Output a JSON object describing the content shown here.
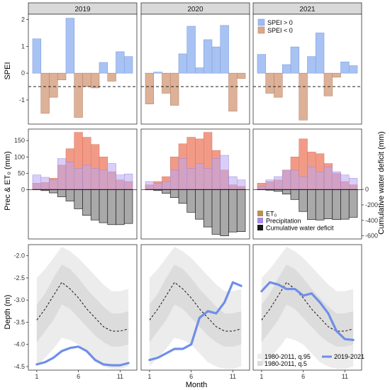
{
  "chart_data": {
    "type": "bar",
    "facets": [
      "2019",
      "2020",
      "2021"
    ],
    "months": [
      1,
      2,
      3,
      4,
      5,
      6,
      7,
      8,
      9,
      10,
      11,
      12
    ],
    "x_ticks": [
      1,
      6,
      11
    ],
    "xlabel": "Month",
    "colors": {
      "spei_pos": "#9ebcf2",
      "spei_neg": "#d9a98d",
      "et0": "#ef8a72",
      "prec": "#b9a6f0",
      "deficit": "#a9a9a9",
      "normal_band_q95": "#ececec",
      "normal_band_q5": "#dcdcdc",
      "line_2019_2021": "#6f8ee8",
      "grid": "#ffffff"
    },
    "spei": {
      "ylabel": "SPEI",
      "ylim": [
        -1.9,
        2.2
      ],
      "y_ticks": [
        -1,
        0,
        1,
        2
      ],
      "threshold": -0.5,
      "legend": [
        "SPEI > 0",
        "SPEI < 0"
      ],
      "series": [
        {
          "facet": "2019",
          "values": [
            1.28,
            -1.5,
            -0.9,
            -0.25,
            2.05,
            -1.65,
            -0.5,
            -0.55,
            0.4,
            -0.3,
            0.8,
            0.62
          ]
        },
        {
          "facet": "2020",
          "values": [
            -1.15,
            0.04,
            -0.75,
            -1.2,
            0.72,
            1.75,
            0.2,
            1.25,
            0.98,
            1.78,
            -1.42,
            -0.2
          ]
        },
        {
          "facet": "2021",
          "values": [
            0.7,
            -0.75,
            -0.9,
            0.32,
            0.98,
            -1.75,
            0.62,
            1.5,
            -0.85,
            -0.15,
            0.42,
            0.28
          ]
        }
      ]
    },
    "water": {
      "ylabel": "Prec & ET₀ (mm)",
      "ylabel_right": "Cumulative water deficit (mm)",
      "ylim_left": [
        -150,
        185
      ],
      "y_ticks_left": [
        0,
        50,
        100,
        150
      ],
      "ylim_right": [
        -640,
        780
      ],
      "y_ticks_right": [
        0,
        -200,
        -400,
        -600
      ],
      "legend": [
        "ET₀",
        "Precipitation",
        "Cumulative water deficit"
      ],
      "series": [
        {
          "facet": "2019",
          "et0": [
            20,
            22,
            35,
            75,
            125,
            175,
            160,
            138,
            100,
            55,
            30,
            25
          ],
          "prec": [
            45,
            38,
            30,
            95,
            85,
            65,
            75,
            65,
            60,
            80,
            45,
            48
          ],
          "deficit": [
            -5,
            -15,
            -45,
            -95,
            -150,
            -250,
            -335,
            -395,
            -430,
            -455,
            -455,
            -440
          ]
        },
        {
          "facet": "2020",
          "et0": [
            15,
            25,
            40,
            100,
            140,
            160,
            155,
            175,
            120,
            60,
            15,
            10
          ],
          "prec": [
            25,
            20,
            25,
            60,
            95,
            65,
            80,
            65,
            95,
            105,
            40,
            30
          ],
          "deficit": [
            -5,
            -15,
            -50,
            -105,
            -180,
            -295,
            -385,
            -485,
            -580,
            -600,
            -550,
            -545
          ]
        },
        {
          "facet": "2021",
          "et0": [
            20,
            25,
            30,
            60,
            100,
            155,
            115,
            110,
            80,
            50,
            25,
            15
          ],
          "prec": [
            10,
            30,
            40,
            60,
            60,
            40,
            70,
            55,
            70,
            55,
            45,
            35
          ],
          "deficit": [
            -5,
            -10,
            -25,
            -60,
            -130,
            -285,
            -390,
            -395,
            -380,
            -390,
            -385,
            -360
          ]
        }
      ]
    },
    "depth": {
      "ylabel": "Depth (m)",
      "ylim": [
        -4.58,
        -1.75
      ],
      "y_ticks": [
        -2.0,
        -2.5,
        -3.0,
        -3.5,
        -4.0,
        -4.5
      ],
      "legend": [
        "1980-2011, q.95",
        "1980-2011, q.5",
        "2019-2021"
      ],
      "normal_months": [
        1,
        2,
        3,
        4,
        5,
        6,
        7,
        8,
        9,
        10,
        11,
        12
      ],
      "median": [
        -3.45,
        -3.2,
        -2.9,
        -2.6,
        -2.75,
        -2.95,
        -3.2,
        -3.4,
        -3.6,
        -3.7,
        -3.7,
        -3.65
      ],
      "q5_lower": [
        -3.95,
        -3.7,
        -3.45,
        -3.1,
        -3.2,
        -3.4,
        -3.6,
        -3.8,
        -3.95,
        -4.05,
        -4.05,
        -4.0
      ],
      "q5_upper": [
        -3.1,
        -2.85,
        -2.5,
        -2.2,
        -2.3,
        -2.5,
        -2.75,
        -2.95,
        -3.15,
        -3.3,
        -3.3,
        -3.25
      ],
      "q95_lower": [
        -4.5,
        -4.3,
        -4.1,
        -3.85,
        -3.9,
        -4.0,
        -4.2,
        -4.4,
        -4.5,
        -4.55,
        -4.55,
        -4.5
      ],
      "q95_upper": [
        -2.5,
        -2.3,
        -2.05,
        -1.8,
        -1.9,
        -2.05,
        -2.25,
        -2.45,
        -2.65,
        -2.8,
        -2.8,
        -2.75
      ],
      "series": [
        {
          "facet": "2019",
          "values": [
            -4.45,
            -4.4,
            -4.3,
            -4.15,
            -4.08,
            -4.05,
            -4.15,
            -4.35,
            -4.45,
            -4.47,
            -4.47,
            -4.42
          ]
        },
        {
          "facet": "2020",
          "values": [
            -4.35,
            -4.3,
            -4.2,
            -4.1,
            -4.1,
            -4.0,
            -3.4,
            -3.25,
            -3.3,
            -3.05,
            -2.6,
            -2.68
          ]
        },
        {
          "facet": "2021",
          "values": [
            -2.8,
            -2.6,
            -2.65,
            -2.75,
            -2.75,
            -2.9,
            -2.85,
            -3.05,
            -3.3,
            -3.7,
            -3.88,
            -3.9
          ]
        }
      ]
    }
  }
}
